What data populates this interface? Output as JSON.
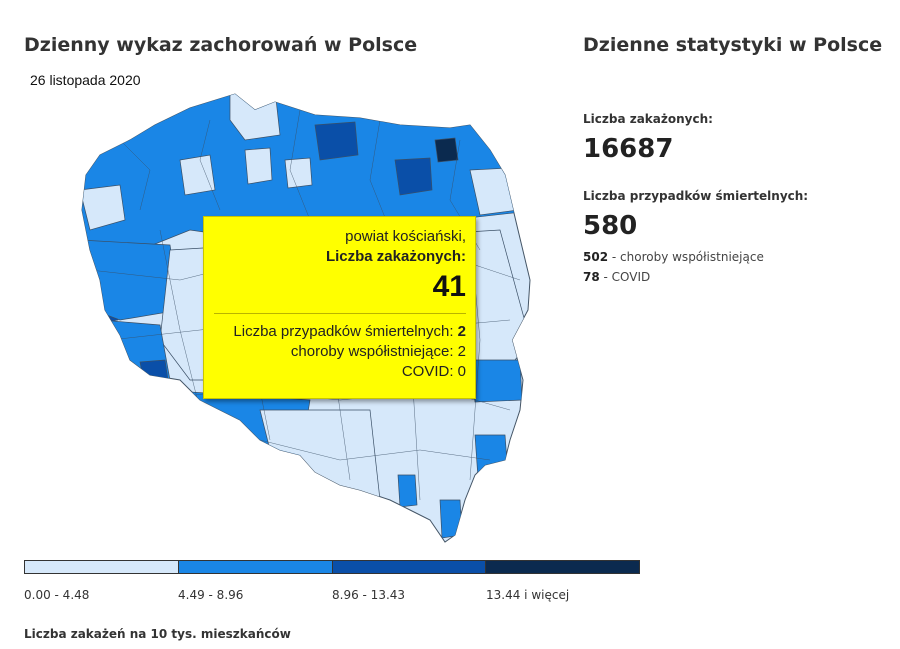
{
  "map": {
    "title": "Dzienny wykaz zachorowań w Polsce",
    "date": "26 listopada 2020"
  },
  "stats": {
    "title": "Dzienne statystyki w Polsce",
    "infected_label": "Liczba zakażonych:",
    "infected_value": "16687",
    "deaths_label": "Liczba przypadków śmiertelnych:",
    "deaths_value": "580",
    "comorbid_value": "502",
    "comorbid_label": "choroby współistniejące",
    "covid_value": "78",
    "covid_label": "COVID"
  },
  "tooltip": {
    "region": "powiat kościański,",
    "infected_label": "Liczba zakażonych:",
    "infected_value": "41",
    "deaths_label": "Liczba przypadków śmiertelnych:",
    "deaths_value": "2",
    "comorbid_line": "choroby współistniejące: 2",
    "covid_line": "COVID: 0"
  },
  "legend": {
    "bins": [
      {
        "label": "0.00 - 4.48",
        "color": "#d6e8fa"
      },
      {
        "label": "4.49 - 8.96",
        "color": "#1a86e6"
      },
      {
        "label": "8.96 - 13.43",
        "color": "#0a4fa8"
      },
      {
        "label": "13.44 i więcej",
        "color": "#0b2a4f"
      }
    ],
    "note": "Liczba zakażeń na 10 tys. mieszkańców"
  }
}
